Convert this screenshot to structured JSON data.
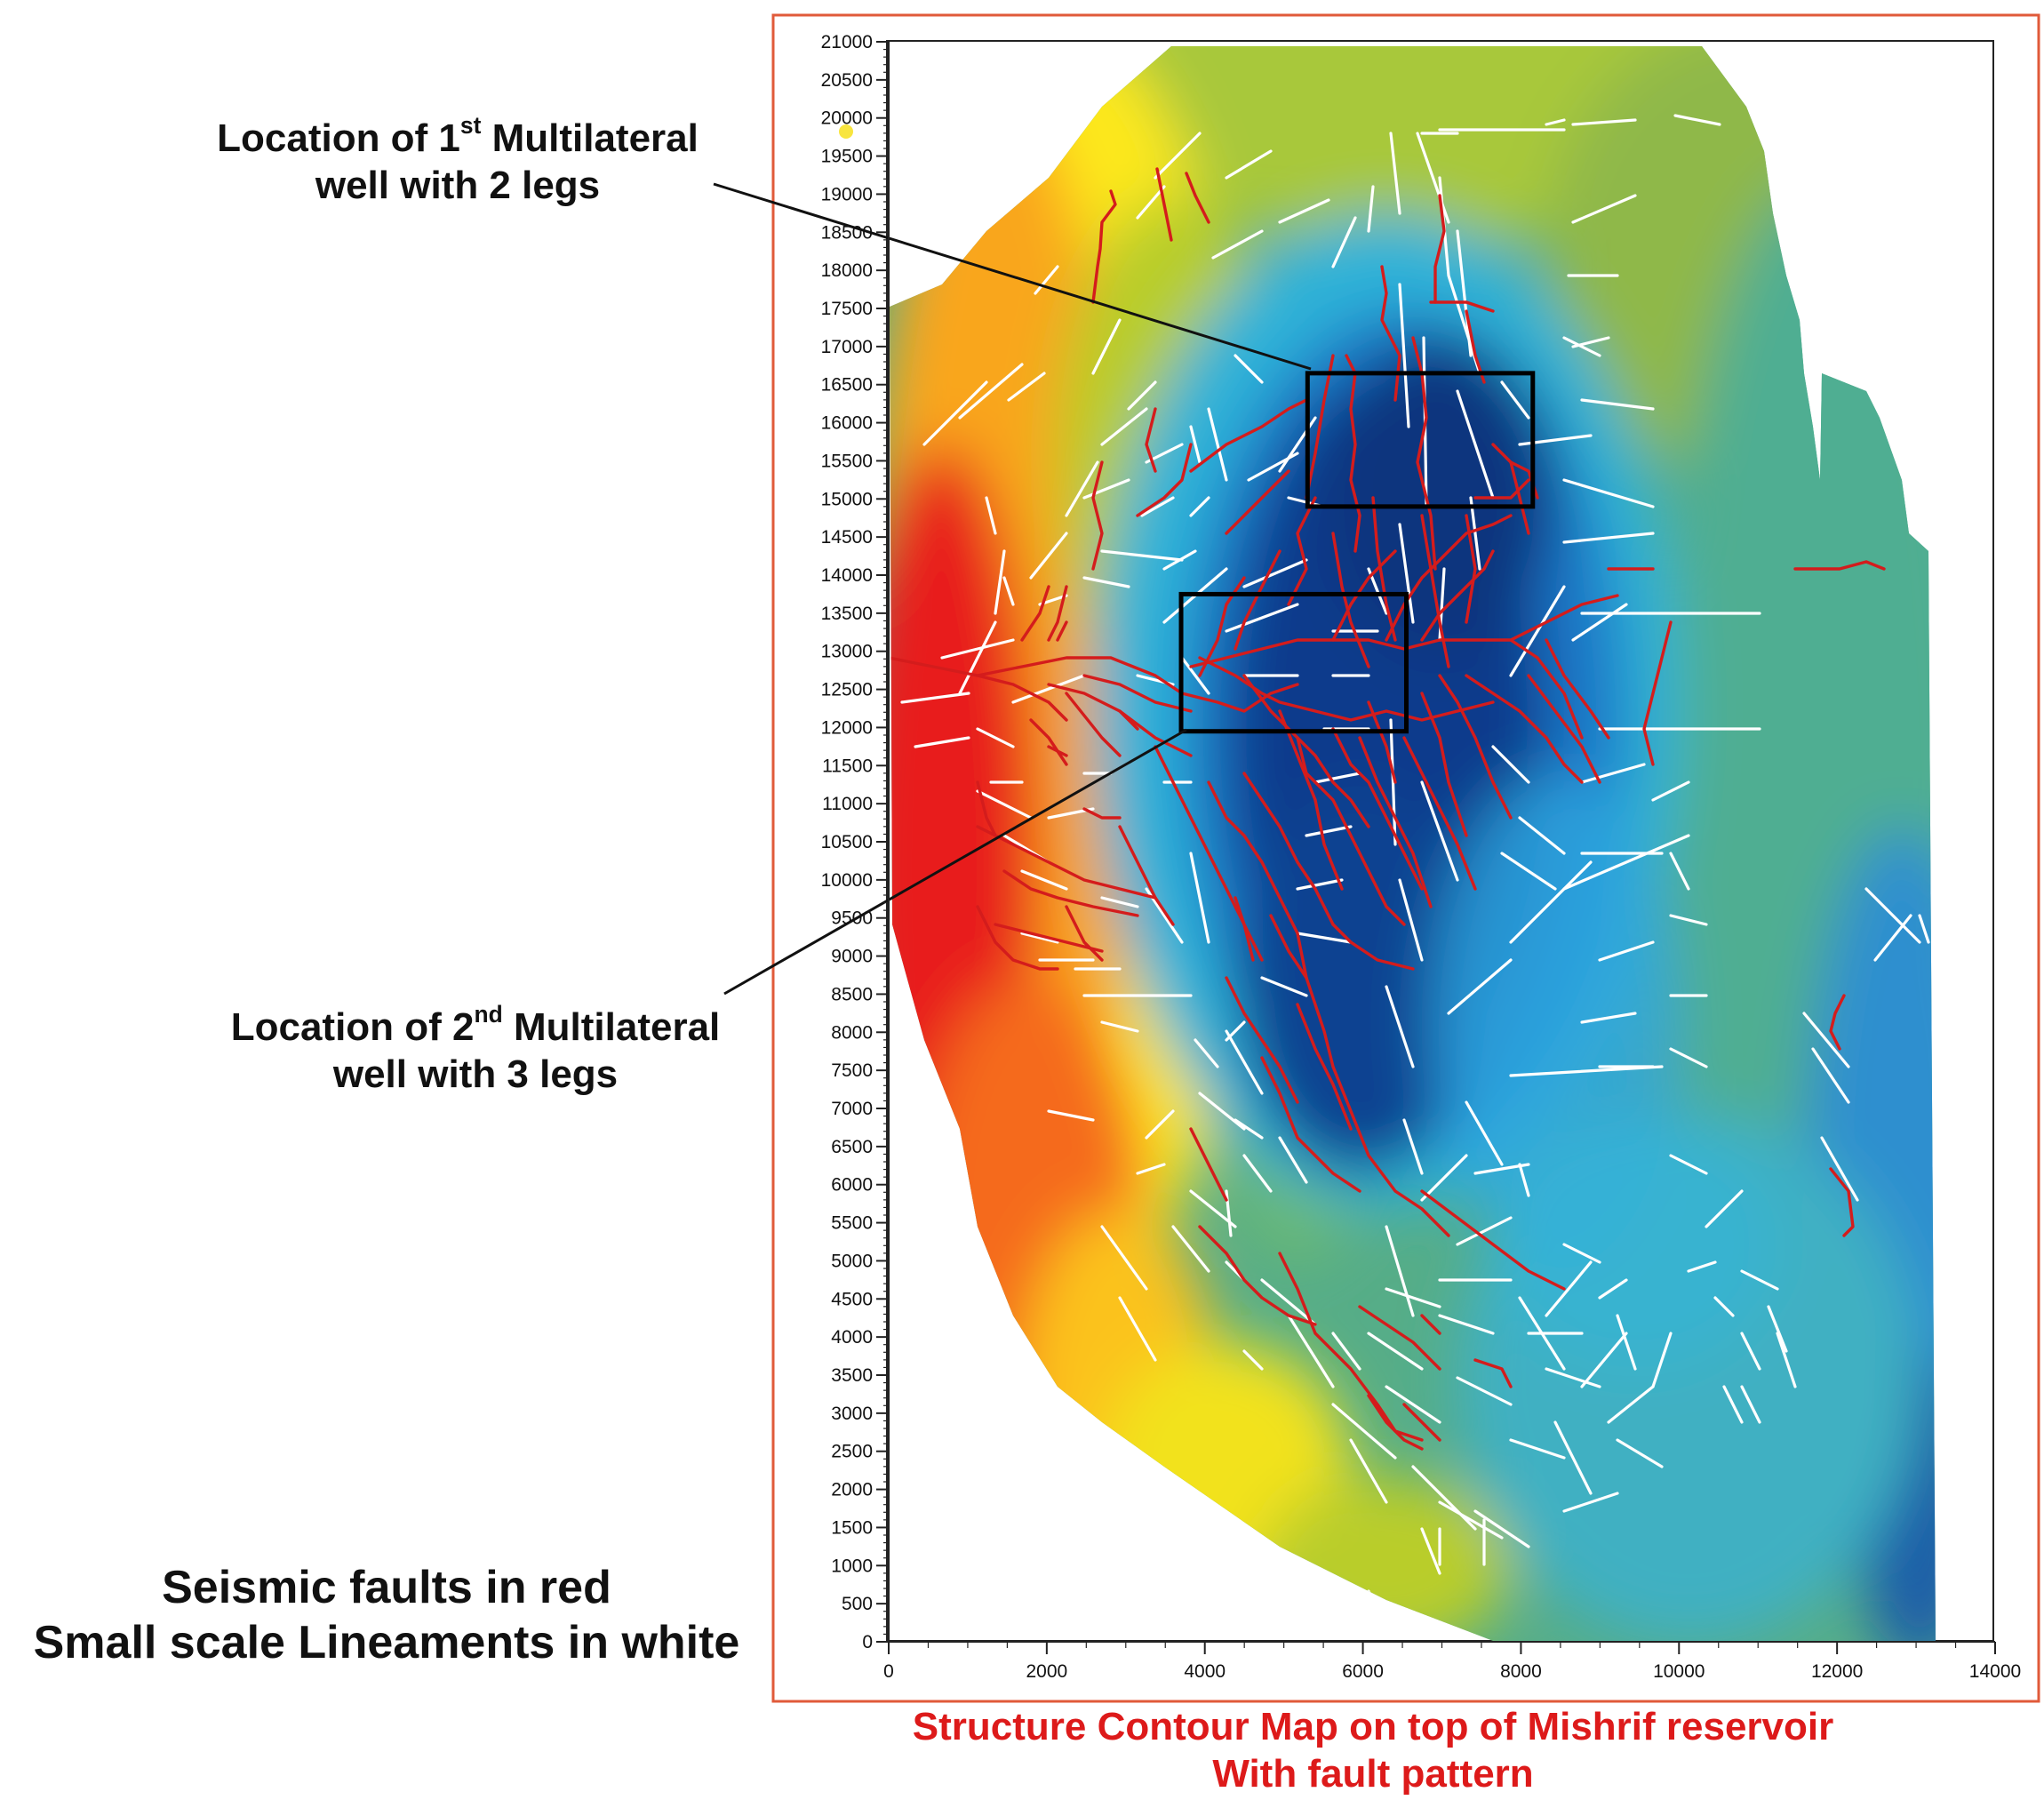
{
  "callouts": {
    "well1": {
      "prefix": "Location of 1",
      "sup": "st",
      "suffix": " Multilateral",
      "line2": "well with 2 legs"
    },
    "well2": {
      "prefix": "Location of 2",
      "sup": "nd",
      "suffix": " Multilateral",
      "line2": "well with 3 legs"
    }
  },
  "legend": {
    "line1": "Seismic faults in red",
    "line2": "Small scale Lineaments in white"
  },
  "caption": {
    "line1": "Structure Contour Map on top of Mishrif reservoir",
    "line2": "With fault pattern"
  },
  "colors": {
    "seismic_fault": "#d41c1c",
    "lineament": "#ffffff",
    "well_box": "#000000",
    "frame": "#e05a3a",
    "caption": "#dd1a1a",
    "map_shallow": "#e81a1a",
    "map_deep": "#0f3b8c"
  },
  "chart_data": {
    "type": "heatmap",
    "x_ticks": [
      0,
      2000,
      4000,
      6000,
      8000,
      10000,
      12000,
      14000
    ],
    "y_ticks": [
      0,
      500,
      1000,
      1500,
      2000,
      2500,
      3000,
      3500,
      4000,
      4500,
      5000,
      5500,
      6000,
      6500,
      7000,
      7500,
      8000,
      8500,
      9000,
      9500,
      10000,
      10500,
      11000,
      11500,
      12000,
      12500,
      13000,
      13500,
      14000,
      14500,
      15000,
      15500,
      16000,
      16500,
      17000,
      17500,
      18000,
      18500,
      19000,
      19500,
      20000,
      20500,
      21000
    ],
    "xlim": [
      0,
      14000
    ],
    "ylim": [
      0,
      21000
    ],
    "color_scale": [
      "#e81a1a",
      "#f88a1c",
      "#fde81a",
      "#b8cd2a",
      "#56ad88",
      "#2fb2d8",
      "#1a78c8",
      "#0f3b8c"
    ],
    "well_boxes": [
      {
        "name": "1st Multilateral well",
        "x": [
          5300,
          8150
        ],
        "y": [
          14900,
          16650
        ]
      },
      {
        "name": "2nd Multilateral well",
        "x": [
          3700,
          6550
        ],
        "y": [
          11950,
          13750
        ]
      }
    ]
  }
}
